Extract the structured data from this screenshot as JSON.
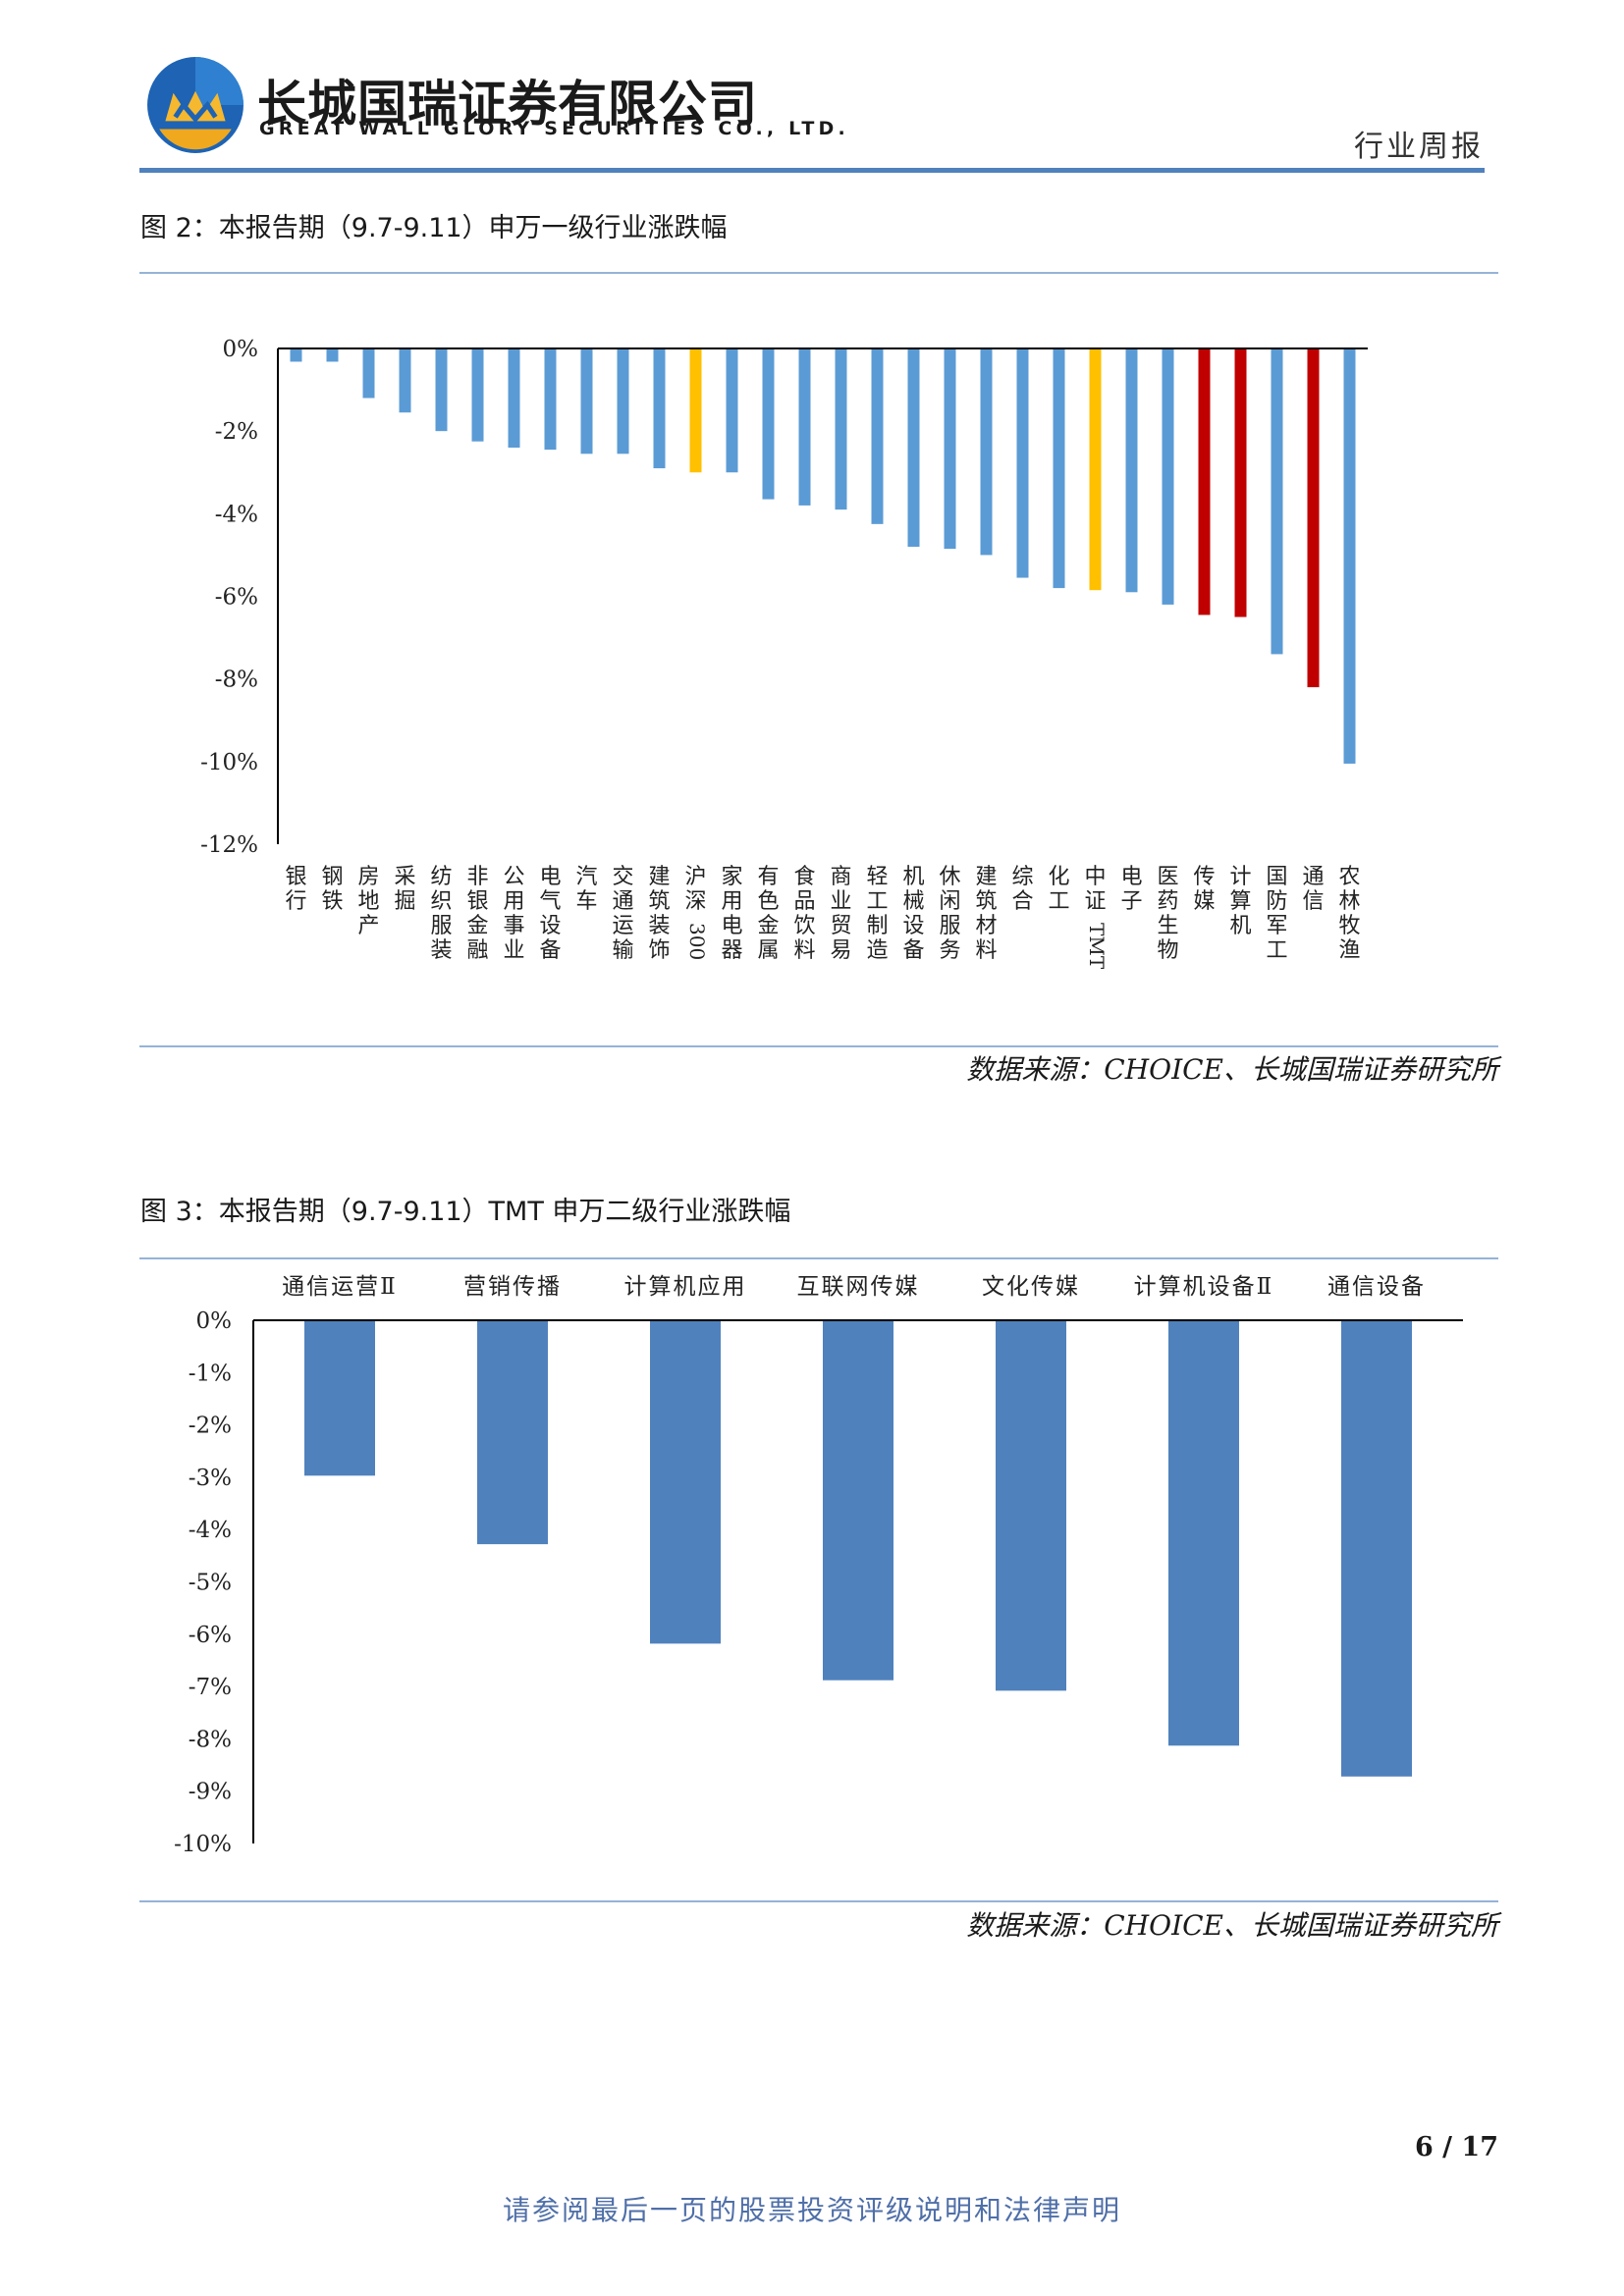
{
  "header": {
    "company_cn": "长城国瑞证券有限公司",
    "company_en": "GREAT WALL GLORY SECURITIES CO., LTD.",
    "doc_type": "行业周报",
    "logo_icon": "company-logo-icon"
  },
  "figure2": {
    "title": "图 2：本报告期（9.7-9.11）申万一级行业涨跌幅",
    "source": "数据来源：CHOICE、长城国瑞证券研究所"
  },
  "figure3": {
    "title": "图 3：本报告期（9.7-9.11）TMT 申万二级行业涨跌幅",
    "source": "数据来源：CHOICE、长城国瑞证券研究所"
  },
  "footer": {
    "page": "6 / 17",
    "note": "请参阅最后一页的股票投资评级说明和法律声明"
  },
  "chart_data": [
    {
      "type": "bar",
      "title": "图 2：本报告期（9.7-9.11）申万一级行业涨跌幅",
      "unit": "%",
      "ylim": [
        -12,
        0
      ],
      "yticks": [
        0,
        -2,
        -4,
        -6,
        -8,
        -10,
        -12
      ],
      "ytick_labels": [
        "0%",
        "-2%",
        "-4%",
        "-6%",
        "-8%",
        "-10%",
        "-12%"
      ],
      "grid": false,
      "legend": "none",
      "categories": [
        "银行",
        "钢铁",
        "房地产",
        "采掘",
        "纺织服装",
        "非银金融",
        "公用事业",
        "电气设备",
        "汽车",
        "交通运输",
        "建筑装饰",
        "沪深300",
        "家用电器",
        "有色金属",
        "食品饮料",
        "商业贸易",
        "轻工制造",
        "机械设备",
        "休闲服务",
        "建筑材料",
        "综合",
        "化工",
        "中证TMT",
        "电子",
        "医药生物",
        "传媒",
        "计算机",
        "国防军工",
        "通信",
        "农林牧渔"
      ],
      "values": [
        -0.32,
        -0.32,
        -1.2,
        -1.55,
        -2.0,
        -2.25,
        -2.4,
        -2.45,
        -2.55,
        -2.55,
        -2.9,
        -3.0,
        -3.0,
        -3.65,
        -3.8,
        -3.9,
        -4.25,
        -4.8,
        -4.85,
        -5.0,
        -5.55,
        -5.8,
        -5.85,
        -5.9,
        -6.2,
        -6.45,
        -6.5,
        -7.4,
        -8.2,
        -10.05
      ],
      "colors": [
        "#5b9bd5",
        "#5b9bd5",
        "#5b9bd5",
        "#5b9bd5",
        "#5b9bd5",
        "#5b9bd5",
        "#5b9bd5",
        "#5b9bd5",
        "#5b9bd5",
        "#5b9bd5",
        "#5b9bd5",
        "#ffc000",
        "#5b9bd5",
        "#5b9bd5",
        "#5b9bd5",
        "#5b9bd5",
        "#5b9bd5",
        "#5b9bd5",
        "#5b9bd5",
        "#5b9bd5",
        "#5b9bd5",
        "#5b9bd5",
        "#ffc000",
        "#5b9bd5",
        "#5b9bd5",
        "#c00000",
        "#c00000",
        "#5b9bd5",
        "#c00000",
        "#5b9bd5"
      ]
    },
    {
      "type": "bar",
      "title": "图 3：本报告期（9.7-9.11）TMT 申万二级行业涨跌幅",
      "unit": "%",
      "ylim": [
        -10,
        0
      ],
      "yticks": [
        0,
        -1,
        -2,
        -3,
        -4,
        -5,
        -6,
        -7,
        -8,
        -9,
        -10
      ],
      "ytick_labels": [
        "0%",
        "-1%",
        "-2%",
        "-3%",
        "-4%",
        "-5%",
        "-6%",
        "-7%",
        "-8%",
        "-9%",
        "-10%"
      ],
      "grid": false,
      "legend": "none",
      "category_axis_position": "top",
      "categories": [
        "通信运营Ⅱ",
        "营销传播",
        "计算机应用",
        "互联网传媒",
        "文化传媒",
        "计算机设备Ⅱ",
        "通信设备"
      ],
      "values": [
        -2.97,
        -4.28,
        -6.18,
        -6.88,
        -7.08,
        -8.13,
        -8.72
      ],
      "color": "#4f81bd"
    }
  ]
}
